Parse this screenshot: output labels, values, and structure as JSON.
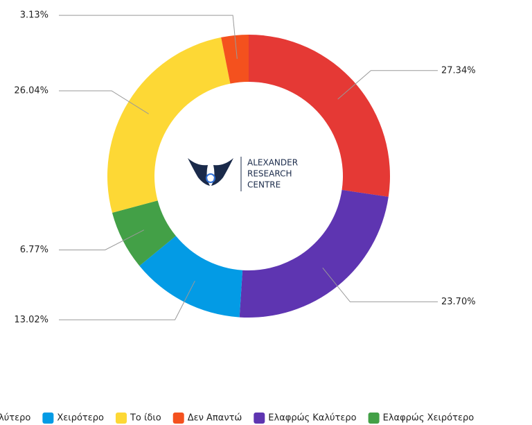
{
  "chart_data": {
    "type": "donut",
    "categories": [
      "Καλύτερο",
      "Ελαφρώς Καλύτερο",
      "Χειρότερο",
      "Ελαφρώς Χειρότερο",
      "Το ίδιο",
      "Δεν Απαντώ"
    ],
    "values": [
      27.34,
      23.7,
      13.02,
      6.77,
      26.04,
      3.13
    ],
    "value_labels": [
      "27.34%",
      "23.70%",
      "13.02%",
      "6.77%",
      "26.04%",
      "3.13%"
    ],
    "colors": [
      "#e53935",
      "#5e35b1",
      "#039be5",
      "#43a047",
      "#fdd835",
      "#f4511e"
    ],
    "legend_order": [
      0,
      2,
      4,
      5,
      1,
      3
    ],
    "legend": "bottom"
  },
  "logo": {
    "lines": [
      "ALEXANDER",
      "RESEARCH",
      "CENTRE"
    ]
  }
}
